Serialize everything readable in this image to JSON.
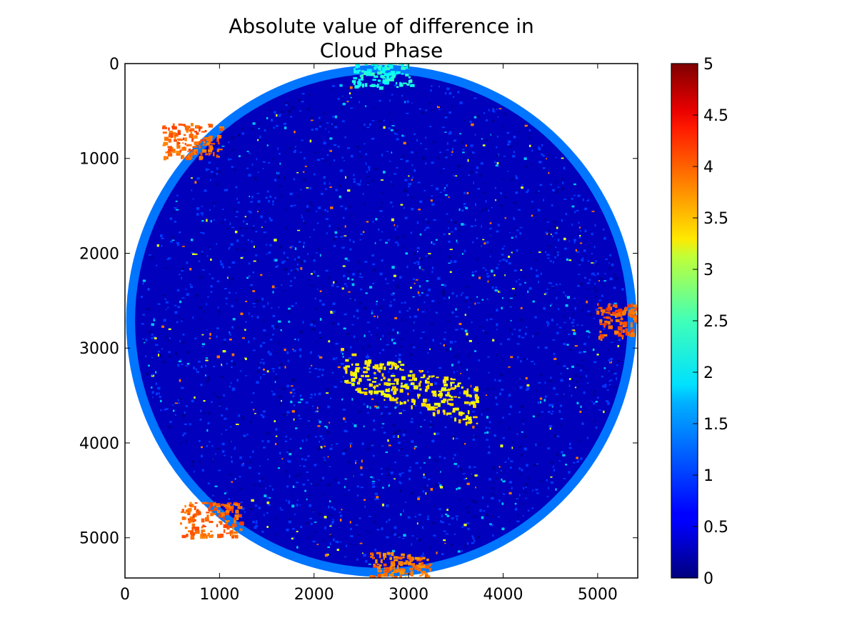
{
  "chart_data": {
    "type": "heatmap",
    "title_lines": [
      "Absolute value of difference in",
      "Cloud Phase"
    ],
    "xlabel": "",
    "ylabel": "",
    "xlim": [
      0,
      5424
    ],
    "ylim": [
      5424,
      0
    ],
    "y_inverted": true,
    "x_ticks": [
      {
        "value": 0,
        "label": "0"
      },
      {
        "value": 1000,
        "label": "1000"
      },
      {
        "value": 2000,
        "label": "2000"
      },
      {
        "value": 3000,
        "label": "3000"
      },
      {
        "value": 4000,
        "label": "4000"
      },
      {
        "value": 5000,
        "label": "5000"
      }
    ],
    "y_ticks": [
      {
        "value": 0,
        "label": "0"
      },
      {
        "value": 1000,
        "label": "1000"
      },
      {
        "value": 2000,
        "label": "2000"
      },
      {
        "value": 3000,
        "label": "3000"
      },
      {
        "value": 4000,
        "label": "4000"
      },
      {
        "value": 5000,
        "label": "5000"
      }
    ],
    "colorbar": {
      "colormap": "jet",
      "range": [
        0,
        5
      ],
      "ticks": [
        {
          "value": 0,
          "label": "0"
        },
        {
          "value": 0.5,
          "label": "0.5"
        },
        {
          "value": 1,
          "label": "1"
        },
        {
          "value": 1.5,
          "label": "1.5"
        },
        {
          "value": 2,
          "label": "2"
        },
        {
          "value": 2.5,
          "label": "2.5"
        },
        {
          "value": 3,
          "label": "3"
        },
        {
          "value": 3.5,
          "label": "3.5"
        },
        {
          "value": 4,
          "label": "4"
        },
        {
          "value": 4.5,
          "label": "4.5"
        },
        {
          "value": 5,
          "label": "5"
        }
      ]
    },
    "disk": {
      "center": [
        2712,
        2712
      ],
      "radius": 2700,
      "dominant_value": 0.3,
      "limb_value": 1.2,
      "regions": [
        {
          "name": "tropical band",
          "x": 3000,
          "y": 3400,
          "value": 3.2
        },
        {
          "name": "north edge",
          "x": 2700,
          "y": 60,
          "value": 2.0
        },
        {
          "name": "south edge",
          "x": 2900,
          "y": 5330,
          "value": 3.8
        },
        {
          "name": "northwest limb",
          "x": 700,
          "y": 800,
          "value": 3.9
        },
        {
          "name": "southwest limb",
          "x": 900,
          "y": 4800,
          "value": 3.9
        },
        {
          "name": "east limb",
          "x": 5300,
          "y": 2700,
          "value": 3.9
        }
      ]
    },
    "grid": false,
    "legend": "colorbar-right"
  },
  "colors": {
    "background": "#ffffff",
    "axes": "#000000"
  }
}
